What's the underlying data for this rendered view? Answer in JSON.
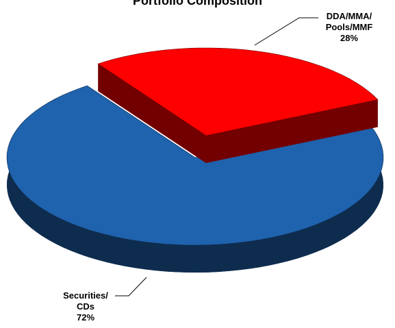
{
  "chart_data": {
    "type": "pie",
    "title": "Portfolio Composition",
    "categories": [
      "DDA/MMA/\nPools/MMF",
      "Securities/\nCDs"
    ],
    "values": [
      28,
      72
    ],
    "value_labels": [
      "28%",
      "72%"
    ],
    "colors": [
      "#ff0000",
      "#1f62ad"
    ]
  }
}
